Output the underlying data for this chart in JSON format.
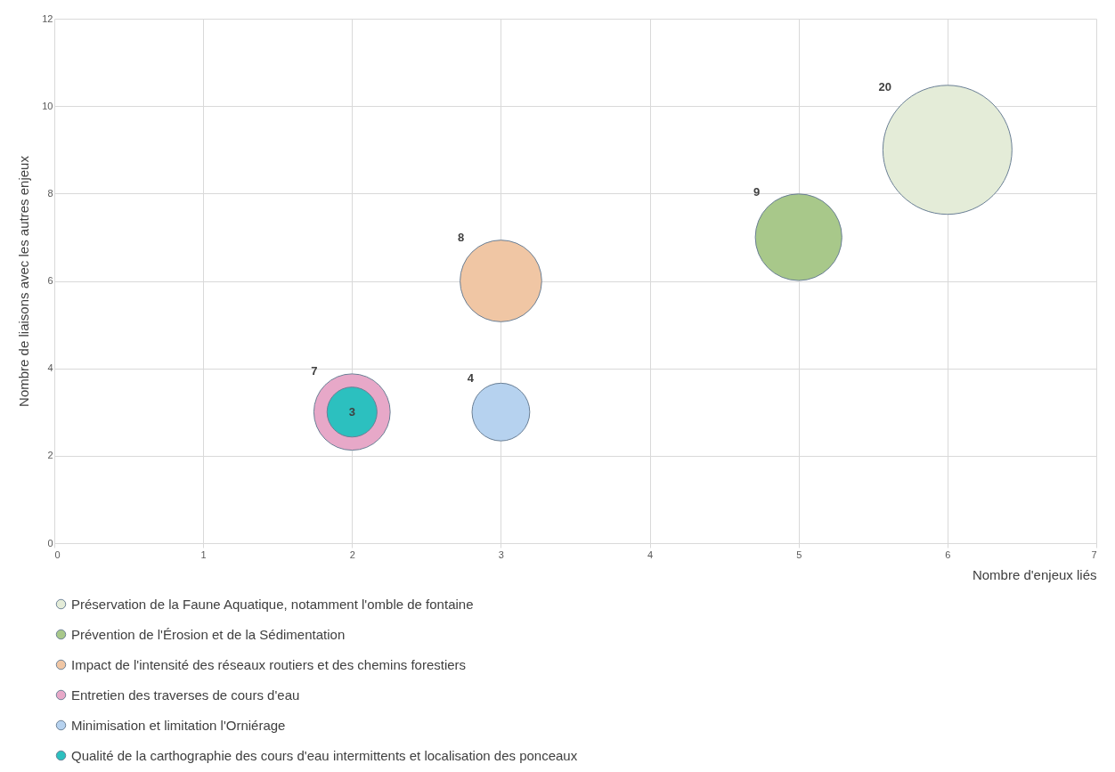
{
  "chart_data": {
    "type": "bubble",
    "xlabel": "Nombre d'enjeux liés",
    "ylabel": "Nombre de liaisons avec les autres enjeux",
    "xlim": [
      0,
      7
    ],
    "xticks": [
      0,
      1,
      2,
      3,
      4,
      5,
      6,
      7
    ],
    "ylim": [
      0,
      12
    ],
    "yticks": [
      0,
      2,
      4,
      6,
      8,
      10,
      12
    ],
    "grid": true,
    "legend": "bottom",
    "series": [
      {
        "name": "Préservation de la Faune Aquatique, notamment l'omble de fontaine",
        "color": "#e4ecd8",
        "x": [
          6
        ],
        "values": [
          9
        ],
        "sizes": [
          20
        ],
        "value_labels": [
          "20"
        ]
      },
      {
        "name": "Prévention de l'Érosion et de la Sédimentation",
        "color": "#a8c88a",
        "x": [
          5
        ],
        "values": [
          7
        ],
        "sizes": [
          9
        ],
        "value_labels": [
          "9"
        ]
      },
      {
        "name": "Impact de l'intensité des réseaux routiers et des chemins forestiers",
        "color": "#f0c6a4",
        "x": [
          3
        ],
        "values": [
          6
        ],
        "sizes": [
          8
        ],
        "value_labels": [
          "8"
        ]
      },
      {
        "name": "Entretien des traverses de cours d'eau",
        "color": "#e7a8c8",
        "x": [
          2
        ],
        "values": [
          3
        ],
        "sizes": [
          7
        ],
        "value_labels": [
          "7"
        ]
      },
      {
        "name": "Minimisation et limitation l'Orniérage",
        "color": "#b6d2ef",
        "x": [
          3
        ],
        "values": [
          3
        ],
        "sizes": [
          4
        ],
        "value_labels": [
          "4"
        ]
      },
      {
        "name": "Qualité de la carthographie des cours d'eau intermittents et localisation des ponceaux",
        "color": "#2cc0bf",
        "x": [
          2
        ],
        "values": [
          3
        ],
        "sizes": [
          3
        ],
        "value_labels": [
          "3"
        ]
      }
    ]
  }
}
